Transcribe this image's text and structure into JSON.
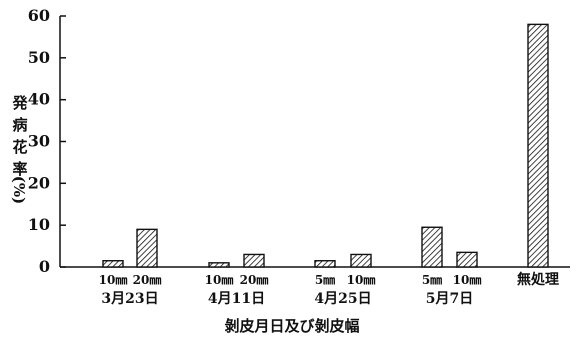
{
  "chart_data": {
    "type": "bar",
    "ylabel_chars": [
      "発",
      "病",
      "花",
      "率",
      "(%)"
    ],
    "xlabel": "剝皮月日及び剝皮幅",
    "ylim": [
      0,
      60
    ],
    "yticks": [
      "0",
      "10",
      "20",
      "30",
      "40",
      "50",
      "60"
    ],
    "bars": [
      {
        "label": "10㎜",
        "group": "3月23日",
        "value": 1.5
      },
      {
        "label": "20㎜",
        "group": "3月23日",
        "value": 9
      },
      {
        "label": "10㎜",
        "group": "4月11日",
        "value": 1
      },
      {
        "label": "20㎜",
        "group": "4月11日",
        "value": 3
      },
      {
        "label": "5㎜",
        "group": "4月25日",
        "value": 1.5
      },
      {
        "label": "10㎜",
        "group": "4月25日",
        "value": 3
      },
      {
        "label": "5㎜",
        "group": "5月7日",
        "value": 9.5
      },
      {
        "label": "10㎜",
        "group": "5月7日",
        "value": 3.5
      },
      {
        "label": "無処理",
        "group": "",
        "value": 58
      }
    ],
    "groups": [
      "3月23日",
      "4月11日",
      "4月25日",
      "5月7日"
    ],
    "grid": false,
    "pattern": "diagonal-hatch"
  }
}
